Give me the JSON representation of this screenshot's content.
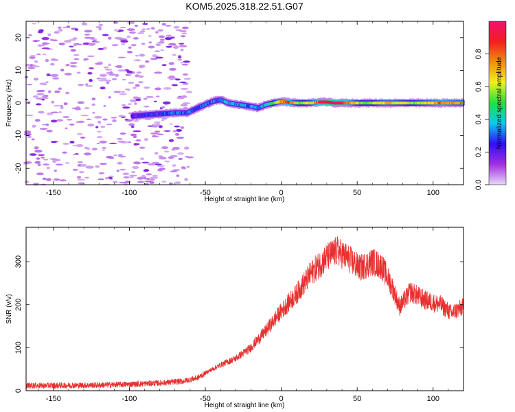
{
  "title": "KOM5.2025.318.22.51.G07",
  "colorbar": {
    "label": "Normalized spectral amplitude",
    "ticks": [
      "0.0",
      "0.2",
      "0.4",
      "0.6",
      "0.8"
    ],
    "tick_values": [
      0.0,
      0.2,
      0.4,
      0.6,
      0.8
    ],
    "range": [
      0,
      1
    ],
    "colors": [
      "#e8d8f8",
      "#a030e0",
      "#3010f0",
      "#10c8f0",
      "#20e040",
      "#f0f020",
      "#f09010",
      "#f02020",
      "#f01070"
    ]
  },
  "chart_data": [
    {
      "type": "heatmap",
      "name": "spectrogram",
      "xlabel": "Height of straight line (km)",
      "ylabel": "Frequency (Hz)",
      "xlim": [
        -168,
        120
      ],
      "ylim": [
        -25,
        25
      ],
      "xticks": [
        -150,
        -100,
        -50,
        0,
        50,
        100
      ],
      "yticks": [
        -20,
        -10,
        0,
        10,
        20
      ],
      "xtick_labels": [
        "-150",
        "-100",
        "-50",
        "0",
        "50",
        "100"
      ],
      "ytick_labels": [
        "-20",
        "-10",
        "0",
        "10",
        "20"
      ],
      "noise_region_x": [
        -168,
        -60
      ],
      "ridge": [
        {
          "x": -98,
          "y": -4.0,
          "a": 0.22
        },
        {
          "x": -85,
          "y": -3.5,
          "a": 0.25
        },
        {
          "x": -70,
          "y": -3.0,
          "a": 0.3
        },
        {
          "x": -62,
          "y": -3.0,
          "a": 0.3
        },
        {
          "x": -55,
          "y": -1.5,
          "a": 0.3
        },
        {
          "x": -50,
          "y": -0.5,
          "a": 0.3
        },
        {
          "x": -45,
          "y": 0.5,
          "a": 0.32
        },
        {
          "x": -40,
          "y": 1.0,
          "a": 0.35
        },
        {
          "x": -35,
          "y": 0.0,
          "a": 0.38
        },
        {
          "x": -28,
          "y": -0.5,
          "a": 0.35
        },
        {
          "x": -20,
          "y": -1.0,
          "a": 0.3
        },
        {
          "x": -15,
          "y": -1.5,
          "a": 0.35
        },
        {
          "x": -10,
          "y": -0.5,
          "a": 0.4
        },
        {
          "x": -5,
          "y": 0.0,
          "a": 0.55
        },
        {
          "x": 0,
          "y": 0.5,
          "a": 0.75
        },
        {
          "x": 5,
          "y": 0.2,
          "a": 0.85
        },
        {
          "x": 10,
          "y": 0.0,
          "a": 0.6
        },
        {
          "x": 15,
          "y": 0.0,
          "a": 0.55
        },
        {
          "x": 20,
          "y": 0.0,
          "a": 0.65
        },
        {
          "x": 25,
          "y": 0.3,
          "a": 0.85
        },
        {
          "x": 30,
          "y": 0.3,
          "a": 1.0
        },
        {
          "x": 35,
          "y": 0.0,
          "a": 0.95
        },
        {
          "x": 40,
          "y": 0.0,
          "a": 0.9
        },
        {
          "x": 45,
          "y": 0.0,
          "a": 0.8
        },
        {
          "x": 50,
          "y": 0.0,
          "a": 0.6
        },
        {
          "x": 55,
          "y": 0.0,
          "a": 0.5
        },
        {
          "x": 60,
          "y": 0.0,
          "a": 0.55
        },
        {
          "x": 65,
          "y": 0.0,
          "a": 0.65
        },
        {
          "x": 70,
          "y": 0.0,
          "a": 0.7
        },
        {
          "x": 75,
          "y": 0.0,
          "a": 0.65
        },
        {
          "x": 80,
          "y": 0.0,
          "a": 0.6
        },
        {
          "x": 85,
          "y": 0.0,
          "a": 0.55
        },
        {
          "x": 90,
          "y": 0.0,
          "a": 0.6
        },
        {
          "x": 95,
          "y": 0.0,
          "a": 0.65
        },
        {
          "x": 100,
          "y": 0.0,
          "a": 0.7
        },
        {
          "x": 105,
          "y": 0.0,
          "a": 0.8
        },
        {
          "x": 110,
          "y": 0.0,
          "a": 0.75
        },
        {
          "x": 115,
          "y": 0.0,
          "a": 0.7
        },
        {
          "x": 120,
          "y": 0.0,
          "a": 0.65
        }
      ]
    },
    {
      "type": "line",
      "name": "snr",
      "xlabel": "Height of straight line (km)",
      "ylabel": "SNR (v/v)",
      "xlim": [
        -168,
        120
      ],
      "ylim": [
        0,
        380
      ],
      "xticks": [
        -150,
        -100,
        -50,
        0,
        50,
        100
      ],
      "yticks": [
        0,
        100,
        200,
        300
      ],
      "xtick_labels": [
        "-150",
        "-100",
        "-50",
        "0",
        "50",
        "100"
      ],
      "ytick_labels": [
        "0",
        "100",
        "200",
        "300"
      ],
      "color": "#e83030",
      "envelope": [
        {
          "x": -168,
          "y": 12
        },
        {
          "x": -150,
          "y": 12
        },
        {
          "x": -120,
          "y": 13
        },
        {
          "x": -100,
          "y": 15
        },
        {
          "x": -80,
          "y": 18
        },
        {
          "x": -65,
          "y": 22
        },
        {
          "x": -55,
          "y": 30
        },
        {
          "x": -48,
          "y": 45
        },
        {
          "x": -40,
          "y": 60
        },
        {
          "x": -30,
          "y": 75
        },
        {
          "x": -20,
          "y": 100
        },
        {
          "x": -10,
          "y": 140
        },
        {
          "x": 0,
          "y": 185
        },
        {
          "x": 10,
          "y": 225
        },
        {
          "x": 20,
          "y": 275
        },
        {
          "x": 30,
          "y": 310
        },
        {
          "x": 37,
          "y": 325
        },
        {
          "x": 45,
          "y": 305
        },
        {
          "x": 52,
          "y": 285
        },
        {
          "x": 60,
          "y": 300
        },
        {
          "x": 66,
          "y": 290
        },
        {
          "x": 72,
          "y": 250
        },
        {
          "x": 78,
          "y": 195
        },
        {
          "x": 85,
          "y": 230
        },
        {
          "x": 95,
          "y": 210
        },
        {
          "x": 105,
          "y": 200
        },
        {
          "x": 112,
          "y": 180
        },
        {
          "x": 120,
          "y": 195
        }
      ]
    }
  ]
}
